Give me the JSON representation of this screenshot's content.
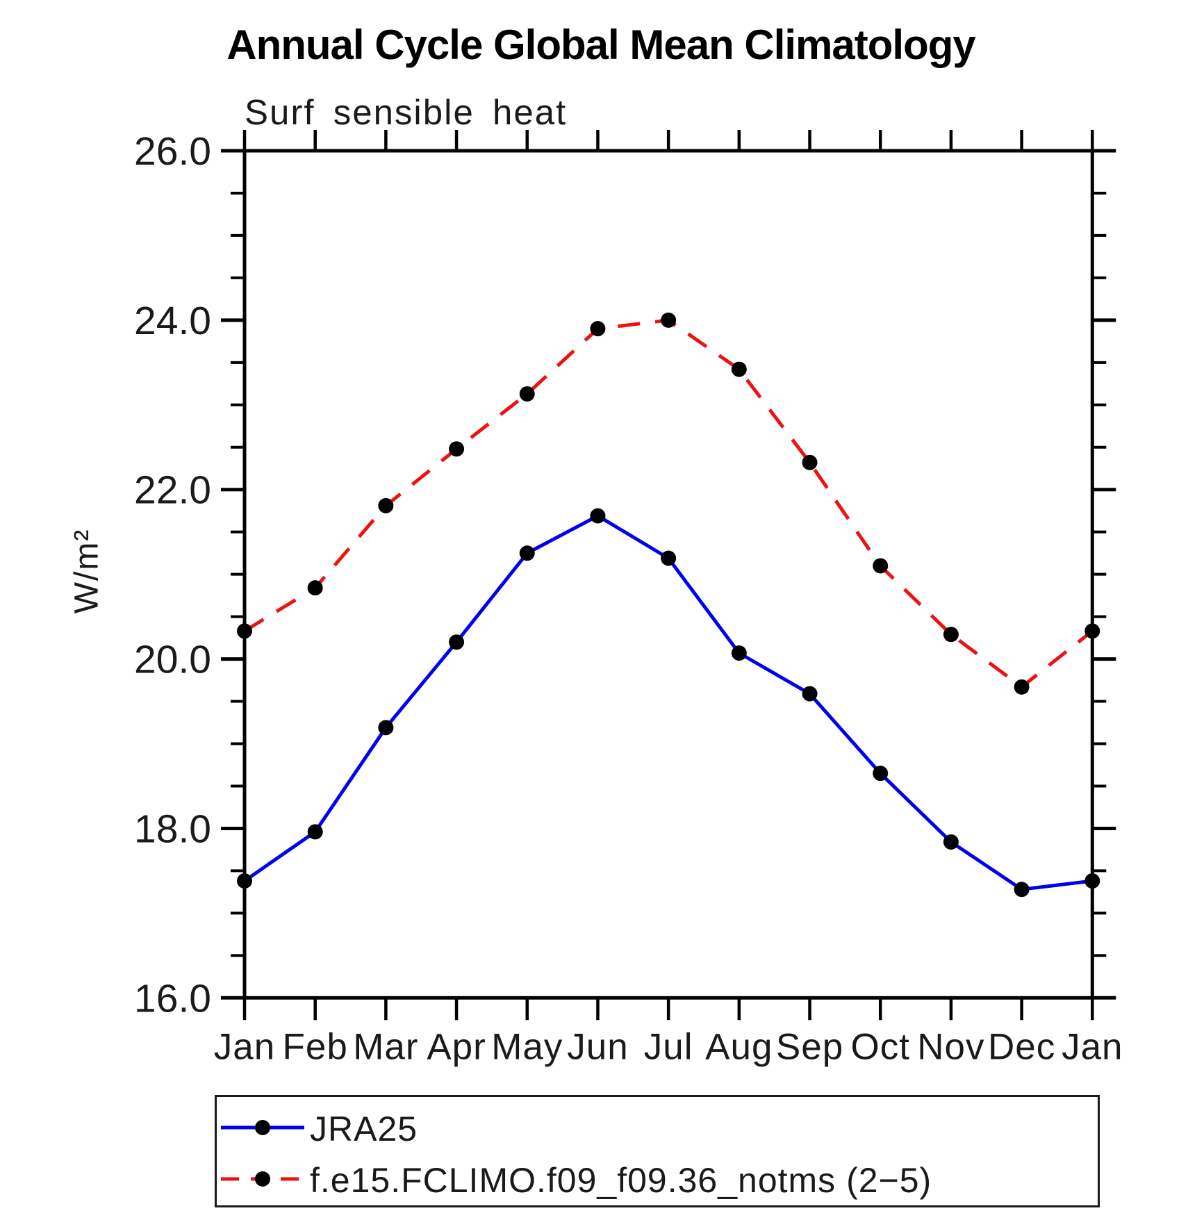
{
  "page": {
    "title": "Annual Cycle Global Mean Climatology"
  },
  "chart_data": {
    "type": "line",
    "title": "Annual Cycle Global Mean Climatology",
    "subtitle": "Surf sensible heat",
    "ylabel": "W/m²",
    "xlabel": "",
    "x_categories": [
      "Jan",
      "Feb",
      "Mar",
      "Apr",
      "May",
      "Jun",
      "Jul",
      "Aug",
      "Sep",
      "Oct",
      "Nov",
      "Dec",
      "Jan"
    ],
    "ylim": [
      16.0,
      26.0
    ],
    "y_major_step": 2.0,
    "y_minor_step": 0.5,
    "y_tick_labels": [
      "16.0",
      "18.0",
      "20.0",
      "22.0",
      "24.0",
      "26.0"
    ],
    "grid": false,
    "axis_color": "#000000",
    "legend_position": "bottom-left-box",
    "series": [
      {
        "name": "JRA25",
        "color": "#0000ee",
        "line_style": "solid",
        "marker": "filled-circle",
        "marker_color": "#000000",
        "values": [
          17.38,
          17.96,
          19.19,
          20.2,
          21.25,
          21.69,
          21.19,
          20.07,
          19.59,
          18.65,
          17.84,
          17.28,
          17.38
        ]
      },
      {
        "name": "f.e15.FCLIMO.f09_f09.36_notms (2−5)",
        "color": "#ee1111",
        "line_style": "dashed",
        "marker": "filled-circle",
        "marker_color": "#000000",
        "values": [
          20.33,
          20.84,
          21.81,
          22.48,
          23.13,
          23.9,
          24.0,
          23.42,
          22.32,
          21.1,
          20.29,
          19.67,
          20.33
        ]
      }
    ]
  }
}
